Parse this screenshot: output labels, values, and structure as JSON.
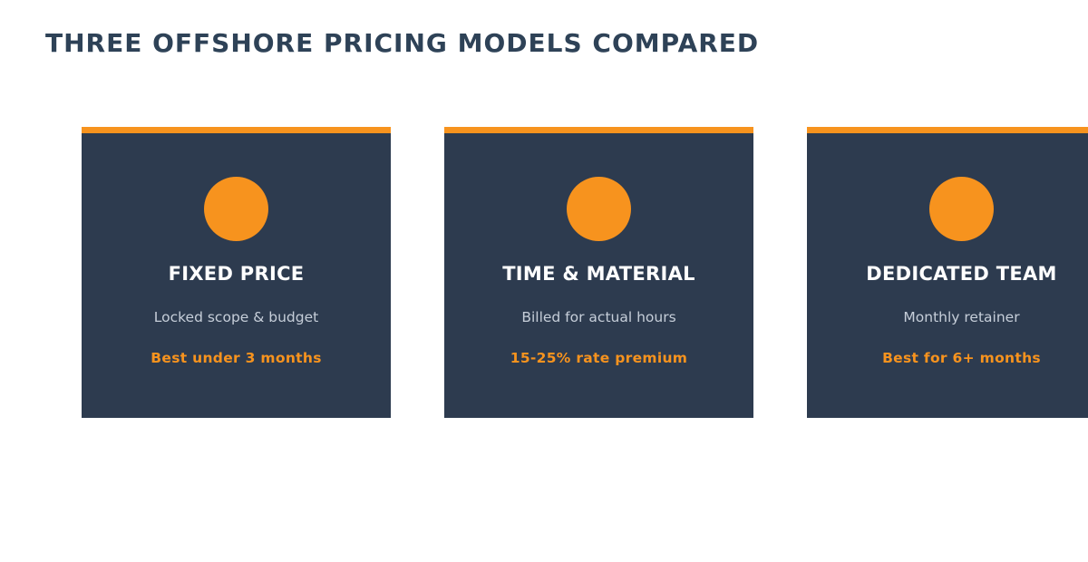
{
  "title": "THREE OFFSHORE PRICING MODELS COMPARED",
  "colors": {
    "heading": "#2e4257",
    "card_background": "#2d3b4f",
    "accent": "#f7931e",
    "card_title": "#ffffff",
    "card_description": "#c6ced9"
  },
  "cards": [
    {
      "icon": "circle-icon",
      "title": "FIXED PRICE",
      "description": "Locked scope & budget",
      "note": "Best under 3 months"
    },
    {
      "icon": "circle-icon",
      "title": "TIME & MATERIAL",
      "description": "Billed for actual hours",
      "note": "15-25% rate premium"
    },
    {
      "icon": "circle-icon",
      "title": "DEDICATED TEAM",
      "description": "Monthly retainer",
      "note": "Best for 6+ months"
    }
  ]
}
